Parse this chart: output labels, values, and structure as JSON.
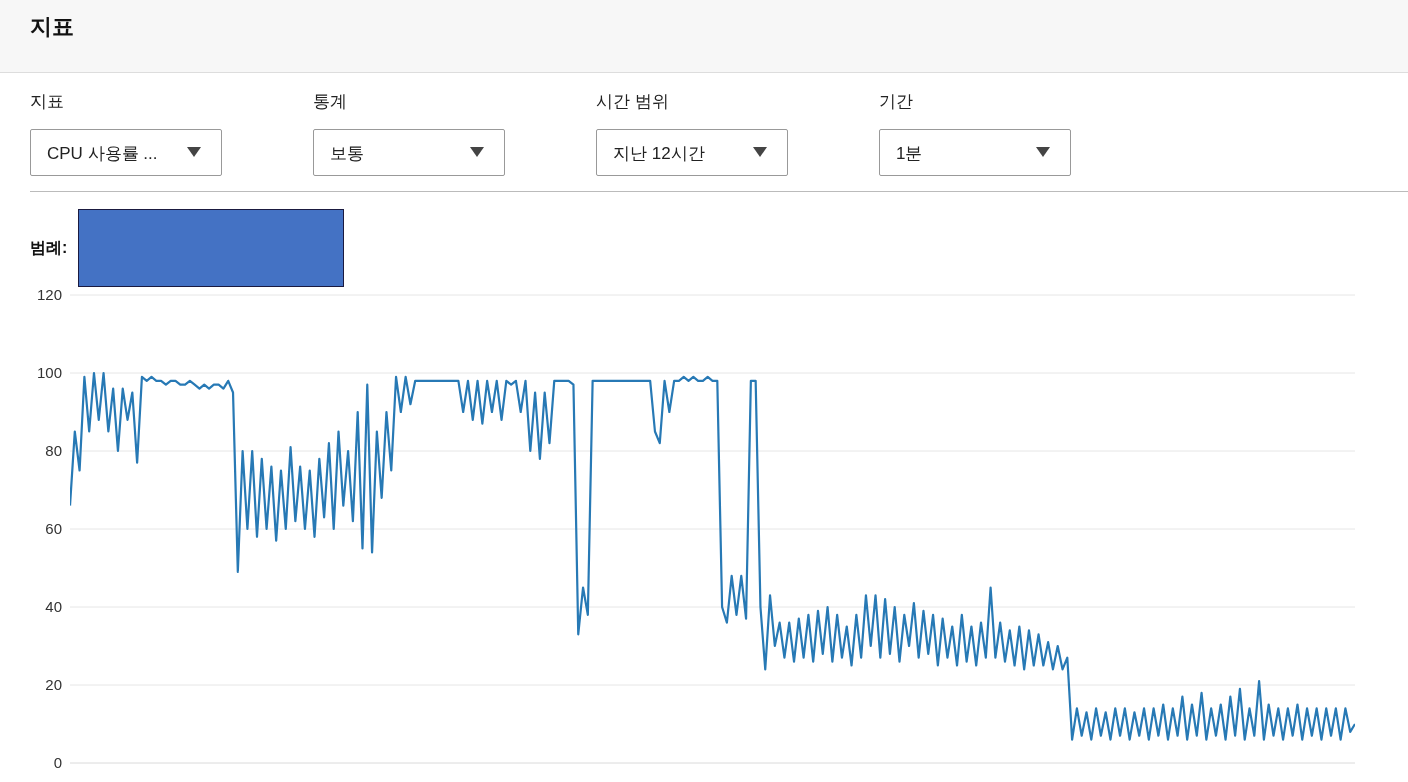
{
  "chart_data": {
    "type": "line",
    "title": "지표",
    "legend_title": "범례:",
    "annotations": [
      "지표",
      "CPU 사용률 ...",
      "통계",
      "보통",
      "시간 범위",
      "지난 12시간",
      "기간",
      "1분"
    ],
    "categories": [
      null,
      null,
      null,
      null,
      null,
      null,
      null,
      null,
      null,
      null,
      null,
      null,
      null,
      null,
      null,
      null,
      null,
      null,
      null,
      null,
      null,
      null,
      null,
      null,
      null,
      null,
      null,
      null,
      null,
      null,
      null,
      null,
      null,
      null,
      null,
      null,
      null,
      null,
      null,
      null,
      null,
      null,
      null,
      null,
      null,
      null,
      null,
      null,
      null,
      null,
      null,
      null,
      null,
      null,
      null,
      null,
      null,
      null,
      null,
      null,
      null,
      null,
      null,
      null,
      null,
      null,
      null,
      null,
      null,
      null,
      null,
      null,
      null,
      null,
      null,
      null,
      null,
      null,
      null,
      null,
      null,
      null,
      null,
      null,
      null,
      null,
      null,
      null,
      null,
      null,
      null,
      null,
      null,
      null,
      null,
      null,
      null,
      null,
      null,
      null,
      null,
      null,
      null,
      null,
      null,
      null,
      null,
      null,
      null,
      null,
      null,
      null,
      null,
      null,
      null,
      null,
      null,
      null,
      null,
      null,
      null,
      null,
      null,
      null,
      null,
      null,
      null,
      null,
      null,
      null,
      null,
      null,
      null,
      null,
      null,
      null,
      null,
      null,
      null,
      null,
      null,
      null,
      null,
      null,
      null,
      null,
      null,
      null,
      null,
      null,
      null,
      null,
      null,
      null,
      null,
      null,
      null,
      null,
      null,
      null,
      null,
      null,
      null,
      null,
      null,
      null,
      null,
      null,
      null,
      null,
      null,
      null,
      null,
      null,
      null,
      null,
      null,
      null,
      null,
      null,
      null,
      null,
      null,
      null,
      null,
      null,
      null,
      null,
      null,
      null,
      null,
      null,
      null,
      null,
      null,
      null,
      null,
      null,
      null,
      null,
      null,
      null,
      null,
      null,
      null,
      null,
      null,
      null,
      null,
      null,
      null,
      null,
      null,
      null,
      null,
      null,
      null,
      null,
      null,
      null,
      null,
      null,
      null,
      null,
      null,
      null,
      null,
      null,
      null,
      null,
      null,
      null,
      null,
      null,
      null,
      null,
      null,
      null,
      null,
      null,
      null,
      null,
      null,
      null,
      null,
      null,
      null,
      null,
      null,
      null,
      null,
      null,
      null,
      null,
      null,
      null,
      null,
      null,
      null,
      null,
      null,
      null,
      null,
      null,
      null,
      null,
      null,
      null,
      null
    ],
    "ylim": [
      0,
      120
    ],
    "yticks": [
      0,
      20,
      40,
      60,
      80,
      100,
      120
    ],
    "grid": "y",
    "tick_labels": "y",
    "marker": "none",
    "line_style": "solid",
    "series": [
      {
        "color": "#2779b5",
        "values": [
          66,
          85,
          75,
          99,
          85,
          100,
          88,
          100,
          85,
          96,
          80,
          96,
          88,
          95,
          77,
          99,
          98,
          99,
          98,
          98,
          97,
          98,
          98,
          97,
          97,
          98,
          97,
          96,
          97,
          96,
          97,
          97,
          96,
          98,
          95,
          49,
          80,
          60,
          80,
          58,
          78,
          60,
          76,
          57,
          75,
          60,
          81,
          62,
          76,
          60,
          75,
          58,
          78,
          63,
          82,
          60,
          85,
          66,
          80,
          62,
          90,
          55,
          97,
          54,
          85,
          68,
          90,
          75,
          99,
          90,
          99,
          92,
          98,
          98,
          98,
          98,
          98,
          98,
          98,
          98,
          98,
          98,
          90,
          98,
          88,
          98,
          87,
          98,
          90,
          98,
          88,
          98,
          97,
          98,
          90,
          98,
          80,
          95,
          78,
          95,
          82,
          98,
          98,
          98,
          98,
          97,
          33,
          45,
          38,
          98,
          98,
          98,
          98,
          98,
          98,
          98,
          98,
          98,
          98,
          98,
          98,
          98,
          85,
          82,
          98,
          90,
          98,
          98,
          99,
          98,
          99,
          98,
          98,
          99,
          98,
          98,
          40,
          36,
          48,
          38,
          48,
          37,
          98,
          98,
          40,
          24,
          43,
          30,
          36,
          27,
          36,
          26,
          37,
          27,
          38,
          26,
          39,
          28,
          40,
          26,
          38,
          27,
          35,
          25,
          38,
          27,
          43,
          30,
          43,
          27,
          42,
          28,
          40,
          26,
          38,
          30,
          41,
          27,
          39,
          28,
          38,
          25,
          37,
          27,
          35,
          25,
          38,
          26,
          35,
          25,
          36,
          27,
          45,
          27,
          36,
          26,
          34,
          25,
          35,
          24,
          34,
          25,
          33,
          25,
          31,
          24,
          30,
          24,
          27,
          6,
          14,
          7,
          13,
          6,
          14,
          7,
          13,
          6,
          14,
          7,
          14,
          6,
          13,
          7,
          14,
          6,
          14,
          7,
          15,
          6,
          14,
          7,
          17,
          6,
          15,
          7,
          18,
          6,
          14,
          7,
          15,
          6,
          17,
          7,
          19,
          6,
          14,
          7,
          21,
          6,
          15,
          7,
          14,
          6,
          14,
          7,
          15,
          6,
          14,
          7,
          14,
          6,
          14,
          7,
          14,
          6,
          14,
          8,
          10
        ]
      }
    ]
  }
}
